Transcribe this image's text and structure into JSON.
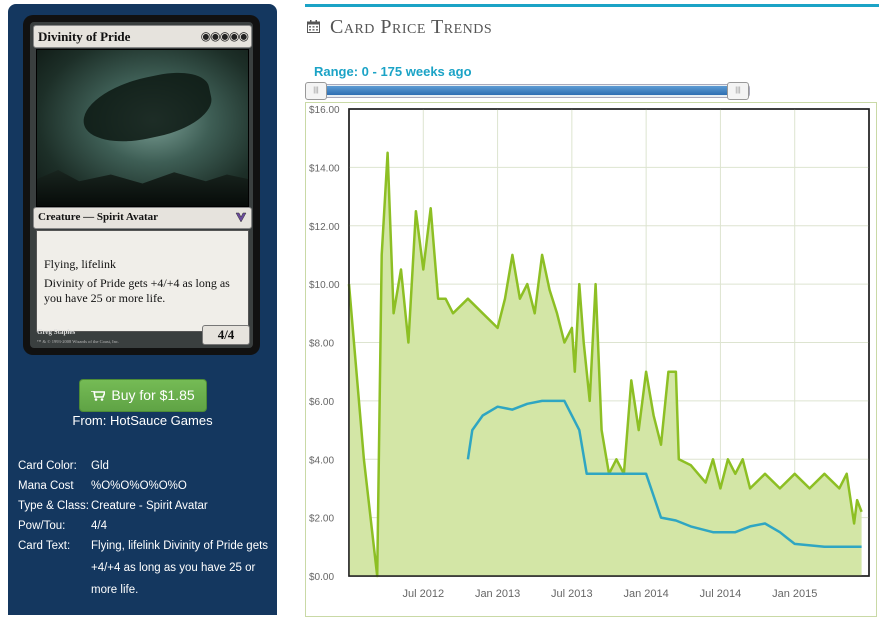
{
  "card": {
    "name": "Divinity of Pride",
    "mana_symbols": "◉◉◉◉◉",
    "type_line": "Creature — Spirit Avatar",
    "text_line1": "Flying, lifelink",
    "text_line2": "Divinity of Pride gets +4/+4 as long as you have 25 or more life.",
    "pt": "4/4",
    "artist": "Greg Staples",
    "copyright": "™ & © 1993-2008 Wizards of the Coast, Inc."
  },
  "buy": {
    "label": "Buy for $1.85",
    "icon": "cart-icon",
    "color": "#66ab4a"
  },
  "from": "From: HotSauce Games",
  "details": [
    {
      "key": "Card Color:",
      "value": "Gld"
    },
    {
      "key": "Mana Cost",
      "value": "%O%O%O%O%O"
    },
    {
      "key": "Type & Class:",
      "value": "Creature - Spirit Avatar"
    },
    {
      "key": "Pow/Tou:",
      "value": "4/4"
    },
    {
      "key": "Card Text:",
      "value": "Flying, lifelink Divinity of Pride gets +4/+4 as long as you have 25 or more life."
    }
  ],
  "panel": {
    "title": "Card Price Trends",
    "icon": "calendar-icon",
    "accent": "#1ba3c6"
  },
  "range": {
    "label": "Range: 0 - 175 weeks ago"
  },
  "chart_data": {
    "type": "line",
    "ylim": [
      0,
      16
    ],
    "y_ticks": [
      "$0.00",
      "$2.00",
      "$4.00",
      "$6.00",
      "$8.00",
      "$10.00",
      "$12.00",
      "$14.00",
      "$16.00"
    ],
    "x_ticks": [
      "Jul 2012",
      "Jan 2013",
      "Jul 2013",
      "Jan 2014",
      "Jul 2014",
      "Jan 2015"
    ],
    "grid": true,
    "series": [
      {
        "color": "#8dbf24",
        "fill": "#d3e6a6",
        "points": [
          [
            2012.0,
            10
          ],
          [
            2012.1,
            4
          ],
          [
            2012.19,
            0
          ],
          [
            2012.22,
            11
          ],
          [
            2012.26,
            14.5
          ],
          [
            2012.3,
            9
          ],
          [
            2012.35,
            10.5
          ],
          [
            2012.4,
            8
          ],
          [
            2012.45,
            12.5
          ],
          [
            2012.5,
            10.5
          ],
          [
            2012.55,
            12.6
          ],
          [
            2012.6,
            9.5
          ],
          [
            2012.65,
            9.5
          ],
          [
            2012.7,
            9
          ],
          [
            2012.8,
            9.5
          ],
          [
            2012.9,
            9
          ],
          [
            2013.0,
            8.5
          ],
          [
            2013.05,
            9.5
          ],
          [
            2013.1,
            11
          ],
          [
            2013.15,
            9.5
          ],
          [
            2013.2,
            10
          ],
          [
            2013.25,
            9
          ],
          [
            2013.3,
            11
          ],
          [
            2013.35,
            9.8
          ],
          [
            2013.4,
            9
          ],
          [
            2013.45,
            8
          ],
          [
            2013.5,
            8.5
          ],
          [
            2013.52,
            7
          ],
          [
            2013.55,
            10
          ],
          [
            2013.58,
            8
          ],
          [
            2013.62,
            6
          ],
          [
            2013.66,
            10
          ],
          [
            2013.7,
            5
          ],
          [
            2013.75,
            3.5
          ],
          [
            2013.8,
            4
          ],
          [
            2013.85,
            3.5
          ],
          [
            2013.9,
            6.7
          ],
          [
            2013.95,
            5
          ],
          [
            2014.0,
            7
          ],
          [
            2014.05,
            5.5
          ],
          [
            2014.1,
            4.5
          ],
          [
            2014.15,
            7
          ],
          [
            2014.2,
            7
          ],
          [
            2014.22,
            4
          ],
          [
            2014.3,
            3.8
          ],
          [
            2014.4,
            3.2
          ],
          [
            2014.45,
            4
          ],
          [
            2014.5,
            3
          ],
          [
            2014.55,
            4
          ],
          [
            2014.6,
            3.5
          ],
          [
            2014.65,
            4
          ],
          [
            2014.7,
            3
          ],
          [
            2014.8,
            3.5
          ],
          [
            2014.9,
            3
          ],
          [
            2015.0,
            3.5
          ],
          [
            2015.1,
            3
          ],
          [
            2015.2,
            3.5
          ],
          [
            2015.3,
            3
          ],
          [
            2015.35,
            3.5
          ],
          [
            2015.4,
            1.8
          ],
          [
            2015.42,
            2.6
          ],
          [
            2015.45,
            2.2
          ]
        ]
      },
      {
        "color": "#2fa6c2",
        "points": [
          [
            2012.8,
            4
          ],
          [
            2012.83,
            5
          ],
          [
            2012.9,
            5.5
          ],
          [
            2013.0,
            5.8
          ],
          [
            2013.1,
            5.7
          ],
          [
            2013.2,
            5.9
          ],
          [
            2013.3,
            6
          ],
          [
            2013.45,
            6
          ],
          [
            2013.55,
            5
          ],
          [
            2013.6,
            3.5
          ],
          [
            2013.7,
            3.5
          ],
          [
            2013.85,
            3.5
          ],
          [
            2014.0,
            3.5
          ],
          [
            2014.1,
            2
          ],
          [
            2014.2,
            1.9
          ],
          [
            2014.3,
            1.7
          ],
          [
            2014.45,
            1.5
          ],
          [
            2014.6,
            1.5
          ],
          [
            2014.7,
            1.7
          ],
          [
            2014.8,
            1.8
          ],
          [
            2014.9,
            1.5
          ],
          [
            2014.95,
            1.3
          ],
          [
            2015.0,
            1.1
          ],
          [
            2015.2,
            1
          ],
          [
            2015.45,
            1
          ]
        ]
      }
    ]
  }
}
